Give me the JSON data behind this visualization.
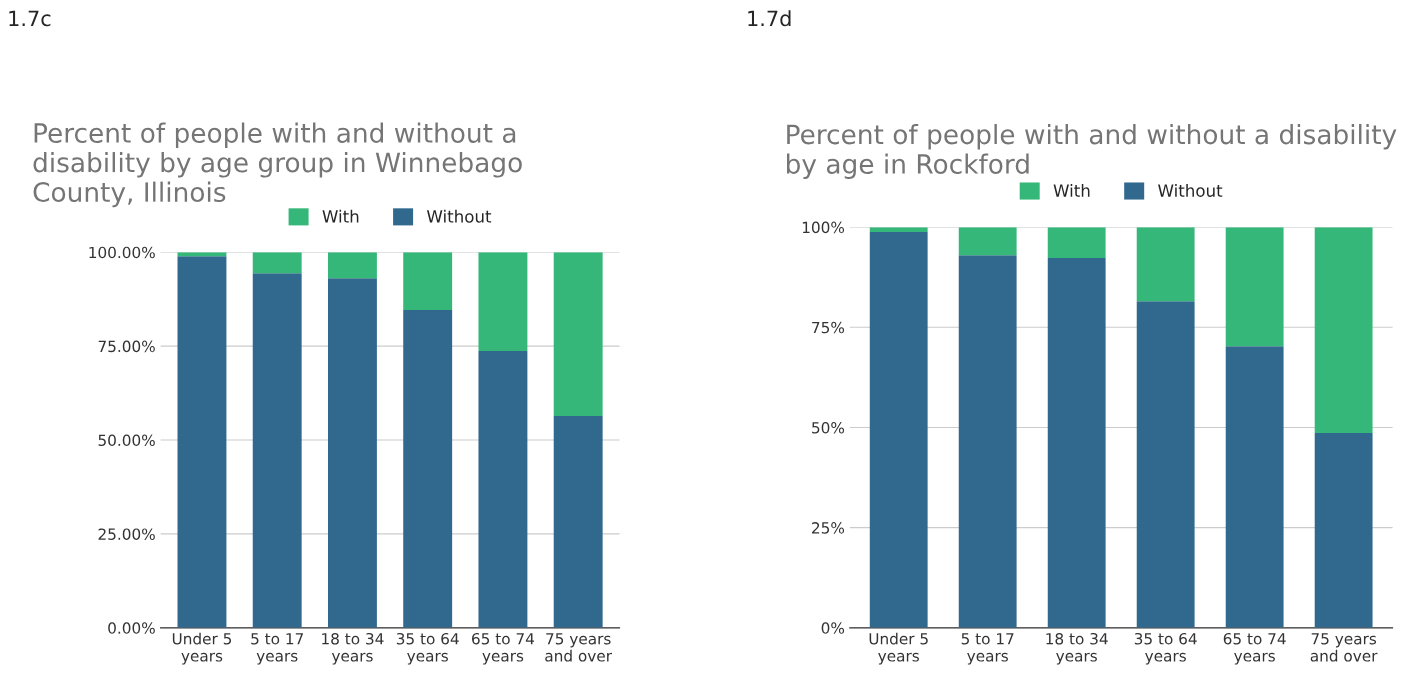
{
  "chart_data": [
    {
      "type": "bar",
      "title": "Percent of people with and without a\ndisability by age group in Winnebago\nCounty, Illinois",
      "annotations": [
        "1.7c"
      ],
      "categories": [
        "Under 5\nyears",
        "5 to 17\nyears",
        "18 to 34\nyears",
        "35 to 64\nyears",
        "65 to 74\nyears",
        "75 years\nand over"
      ],
      "stacked": true,
      "legend": "top",
      "grid": "y",
      "ylim": [
        0,
        100
      ],
      "yticks": [
        {
          "value": 0,
          "label": "0.00%"
        },
        {
          "value": 25,
          "label": "25.00%"
        },
        {
          "value": 50,
          "label": "50.00%"
        },
        {
          "value": 75,
          "label": "75.00%"
        },
        {
          "value": 100,
          "label": "100.00%"
        }
      ],
      "series": [
        {
          "name": "Without",
          "color": "#31688e",
          "values": [
            98.9,
            94.4,
            93.1,
            84.6,
            73.7,
            56.4
          ]
        },
        {
          "name": "With",
          "color": "#35b779",
          "values": [
            1.1,
            5.6,
            6.9,
            15.4,
            26.3,
            43.6
          ]
        }
      ]
    },
    {
      "type": "bar",
      "title": "Percent of people with and without a disability\nby age in Rockford",
      "annotations": [
        "1.7d"
      ],
      "categories": [
        "Under 5\nyears",
        "5 to 17\nyears",
        "18 to 34\nyears",
        "35 to 64\nyears",
        "65 to 74\nyears",
        "75 years\nand over"
      ],
      "stacked": true,
      "legend": "top",
      "grid": "y",
      "ylim": [
        0,
        100
      ],
      "yticks": [
        {
          "value": 0,
          "label": "0%"
        },
        {
          "value": 25,
          "label": "25%"
        },
        {
          "value": 50,
          "label": "50%"
        },
        {
          "value": 75,
          "label": "75%"
        },
        {
          "value": 100,
          "label": "100%"
        }
      ],
      "series": [
        {
          "name": "Without",
          "color": "#31688e",
          "values": [
            98.8,
            93.0,
            92.3,
            81.5,
            70.3,
            48.6
          ]
        },
        {
          "name": "With",
          "color": "#35b779",
          "values": [
            1.2,
            7.0,
            7.7,
            18.5,
            29.7,
            51.4
          ]
        }
      ]
    }
  ]
}
